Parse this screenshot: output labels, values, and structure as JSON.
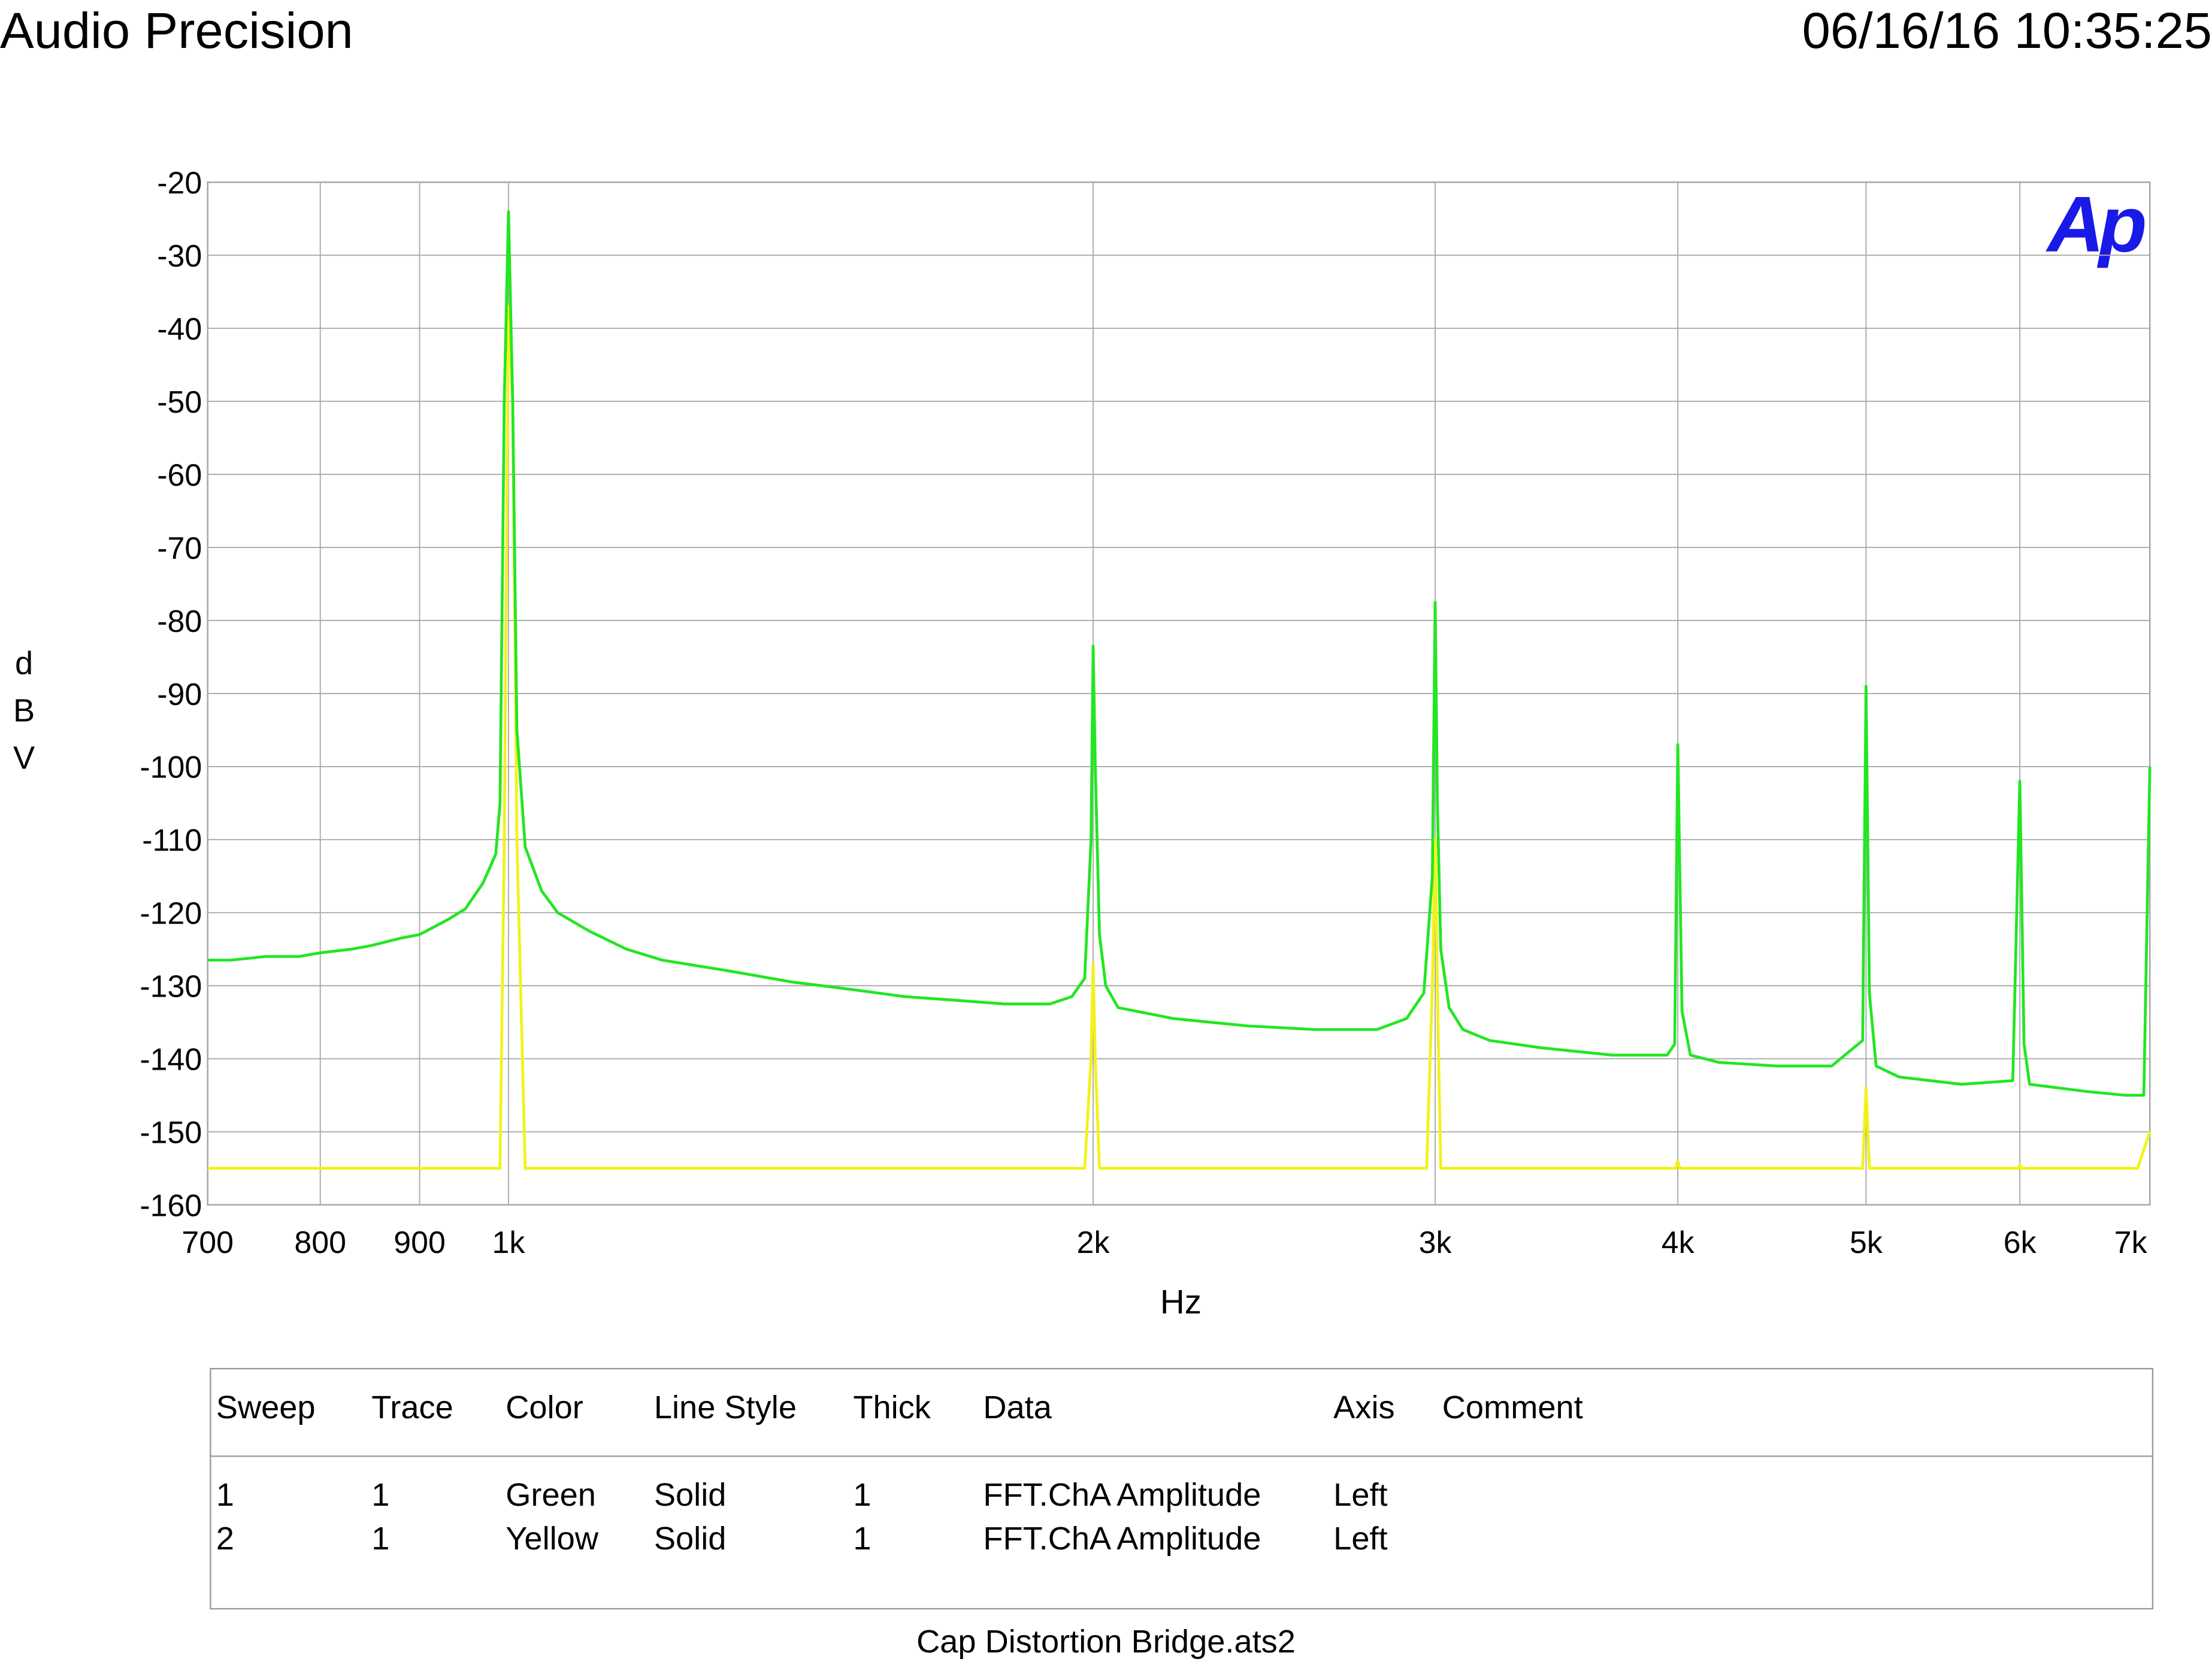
{
  "header": {
    "title": "Audio Precision",
    "timestamp": "06/16/16 10:35:25",
    "logo": "Ap"
  },
  "chart_data": {
    "type": "line",
    "xlabel": "Hz",
    "ylabel": "dBV",
    "xscale": "log",
    "grid": true,
    "xlim": [
      700,
      7000
    ],
    "ylim": [
      -160,
      -20
    ],
    "xticks": [
      700,
      800,
      900,
      {
        "value": 1000,
        "label": "1k"
      },
      {
        "value": 2000,
        "label": "2k"
      },
      {
        "value": 3000,
        "label": "3k"
      },
      {
        "value": 4000,
        "label": "4k"
      },
      {
        "value": 5000,
        "label": "5k"
      },
      {
        "value": 6000,
        "label": "6k"
      },
      {
        "value": 7000,
        "label": "7k"
      }
    ],
    "yticks": [
      -20,
      -30,
      -40,
      -50,
      -60,
      -70,
      -80,
      -90,
      -100,
      -110,
      -120,
      -130,
      -140,
      -150,
      -160
    ],
    "series": [
      {
        "color": "#22e622",
        "x": [
          700,
          720,
          750,
          780,
          800,
          830,
          850,
          880,
          900,
          930,
          950,
          970,
          985,
          990,
          995,
          1000,
          1005,
          1010,
          1020,
          1040,
          1060,
          1100,
          1150,
          1200,
          1300,
          1400,
          1500,
          1600,
          1700,
          1800,
          1900,
          1950,
          1980,
          1995,
          2000,
          2005,
          2015,
          2030,
          2060,
          2200,
          2400,
          2600,
          2800,
          2900,
          2960,
          2990,
          3000,
          3008,
          3020,
          3050,
          3100,
          3200,
          3400,
          3700,
          3950,
          3985,
          4000,
          4020,
          4060,
          4200,
          4500,
          4800,
          4980,
          5000,
          5020,
          5060,
          5200,
          5600,
          5950,
          6000,
          6030,
          6070,
          6500,
          6800,
          6950,
          7000
        ],
        "values": [
          -126.5,
          -126.5,
          -126,
          -126,
          -125.5,
          -125,
          -124.5,
          -123.5,
          -123,
          -121,
          -119.5,
          -116,
          -112,
          -105,
          -50,
          -24,
          -50,
          -95,
          -111,
          -117,
          -120,
          -122.5,
          -125,
          -126.5,
          -128,
          -129.5,
          -130.5,
          -131.5,
          -132,
          -132.5,
          -132.5,
          -131.5,
          -129,
          -110,
          -83.5,
          -100,
          -123,
          -130,
          -133,
          -134.5,
          -135.5,
          -136,
          -136,
          -134.5,
          -131,
          -115,
          -77.5,
          -105,
          -125,
          -133,
          -136,
          -137.5,
          -138.5,
          -139.5,
          -139.5,
          -138,
          -97,
          -133.5,
          -139.5,
          -140.5,
          -141,
          -141,
          -137.5,
          -89,
          -131,
          -141,
          -142.5,
          -143.5,
          -143,
          -102,
          -138,
          -143.5,
          -144.5,
          -145,
          -145,
          -100
        ]
      },
      {
        "color": "#f2f21a",
        "x": [
          700,
          990,
          995,
          1000,
          1005,
          1010,
          1020,
          1980,
          1995,
          2000,
          2005,
          2015,
          2970,
          2990,
          3000,
          3010,
          3020,
          3990,
          4000,
          4010,
          4980,
          5000,
          5020,
          5990,
          6000,
          6010,
          6900,
          7000
        ],
        "values": [
          -155,
          -155,
          -110,
          -37,
          -50,
          -110,
          -155,
          -155,
          -140,
          -127,
          -140,
          -155,
          -155,
          -130,
          -110,
          -135,
          -155,
          -155,
          -154,
          -155,
          -155,
          -144,
          -155,
          -155,
          -154.5,
          -155,
          -155,
          -150
        ]
      }
    ]
  },
  "legend_table": {
    "headers": [
      "Sweep",
      "Trace",
      "Color",
      "Line Style",
      "Thick",
      "Data",
      "Axis",
      "Comment"
    ],
    "rows": [
      [
        1,
        1,
        "Green",
        "Solid",
        1,
        "FFT.ChA Amplitude",
        "Left"
      ],
      [
        2,
        1,
        "Yellow",
        "Solid",
        1,
        "FFT.ChA Amplitude",
        "Left"
      ]
    ]
  },
  "footer": "Cap Distortion Bridge.ats2"
}
